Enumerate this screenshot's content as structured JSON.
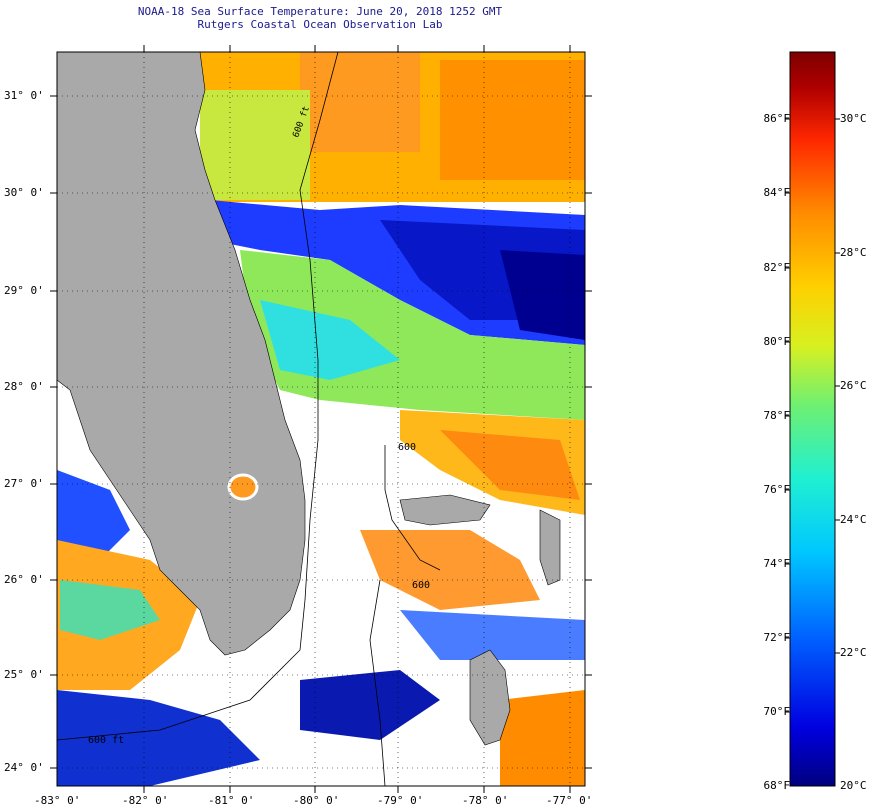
{
  "title": {
    "line1": "NOAA-18 Sea Surface Temperature:  June 20, 2018 1252 GMT",
    "line2": "Rutgers Coastal Ocean Observation Lab"
  },
  "axes": {
    "lat_labels": [
      "31° 0'",
      "30° 0'",
      "29° 0'",
      "28° 0'",
      "27° 0'",
      "26° 0'",
      "25° 0'",
      "24° 0'"
    ],
    "lon_labels": [
      "-83° 0'",
      "-82° 0'",
      "-81° 0'",
      "-80° 0'",
      "-79° 0'",
      "-78° 0'",
      "-77° 0'"
    ]
  },
  "contours": {
    "label_600_east": "600",
    "label_600_south": "600 ft",
    "label_600_mid": "600",
    "label_shelf": "600 ft"
  },
  "colorbar": {
    "fahrenheit_labels": [
      "86°F",
      "84°F",
      "82°F",
      "80°F",
      "78°F",
      "76°F",
      "74°F",
      "72°F",
      "70°F",
      "68°F"
    ],
    "celsius_labels": [
      "30°C",
      "28°C",
      "26°C",
      "24°C",
      "22°C",
      "20°C"
    ],
    "min_f": 68,
    "max_f": 88,
    "colors": [
      "#00007f",
      "#0000e0",
      "#0060ff",
      "#00c8ff",
      "#20f0d0",
      "#70f070",
      "#d8f020",
      "#ffd000",
      "#ff8c00",
      "#ff2800",
      "#b00000",
      "#7f0000"
    ]
  },
  "map": {
    "land_color": "#a9a9a9",
    "cloud_color": "#ffffff",
    "grid": true
  }
}
